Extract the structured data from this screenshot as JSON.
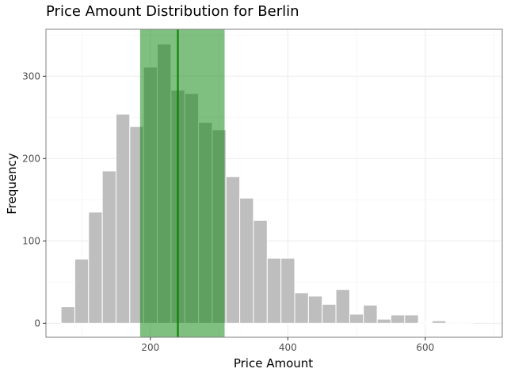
{
  "chart_data": {
    "type": "bar",
    "title": "Price Amount Distribution for Berlin",
    "xlabel": "Price Amount",
    "ylabel": "Frequency",
    "xlim": [
      48,
      712
    ],
    "ylim": [
      -17,
      357
    ],
    "xticks": [
      200,
      400,
      600
    ],
    "yticks": [
      0,
      100,
      200,
      300
    ],
    "bin_width": 20,
    "bins": [
      {
        "x0": 70,
        "x1": 90,
        "value": 20
      },
      {
        "x0": 90,
        "x1": 110,
        "value": 78
      },
      {
        "x0": 110,
        "x1": 130,
        "value": 135
      },
      {
        "x0": 130,
        "x1": 150,
        "value": 185
      },
      {
        "x0": 150,
        "x1": 170,
        "value": 254
      },
      {
        "x0": 170,
        "x1": 190,
        "value": 239
      },
      {
        "x0": 190,
        "x1": 210,
        "value": 311
      },
      {
        "x0": 210,
        "x1": 230,
        "value": 339
      },
      {
        "x0": 230,
        "x1": 250,
        "value": 283
      },
      {
        "x0": 250,
        "x1": 270,
        "value": 279
      },
      {
        "x0": 270,
        "x1": 290,
        "value": 244
      },
      {
        "x0": 290,
        "x1": 310,
        "value": 235
      },
      {
        "x0": 310,
        "x1": 330,
        "value": 178
      },
      {
        "x0": 330,
        "x1": 350,
        "value": 152
      },
      {
        "x0": 350,
        "x1": 370,
        "value": 125
      },
      {
        "x0": 370,
        "x1": 390,
        "value": 79
      },
      {
        "x0": 390,
        "x1": 410,
        "value": 79
      },
      {
        "x0": 410,
        "x1": 430,
        "value": 37
      },
      {
        "x0": 430,
        "x1": 450,
        "value": 33
      },
      {
        "x0": 450,
        "x1": 470,
        "value": 23
      },
      {
        "x0": 470,
        "x1": 490,
        "value": 41
      },
      {
        "x0": 490,
        "x1": 510,
        "value": 11
      },
      {
        "x0": 510,
        "x1": 530,
        "value": 22
      },
      {
        "x0": 530,
        "x1": 550,
        "value": 5
      },
      {
        "x0": 550,
        "x1": 570,
        "value": 10
      },
      {
        "x0": 570,
        "x1": 590,
        "value": 10
      },
      {
        "x0": 590,
        "x1": 610,
        "value": 1
      },
      {
        "x0": 610,
        "x1": 630,
        "value": 3
      },
      {
        "x0": 630,
        "x1": 650,
        "value": 1
      },
      {
        "x0": 650,
        "x1": 670,
        "value": 1
      },
      {
        "x0": 670,
        "x1": 690,
        "value": 0
      }
    ],
    "highlight_range": [
      185,
      308
    ],
    "center_line": 240,
    "colors": {
      "bar_fill": "#bebebe",
      "bar_edge": "#ffffff",
      "highlight_fill": "#008000",
      "highlight_opacity": 0.5,
      "center_line": "#008000",
      "grid_major": "#ebebeb",
      "grid_minor": "#f5f5f5",
      "panel_border": "#7f7f7f"
    },
    "grid": true
  }
}
